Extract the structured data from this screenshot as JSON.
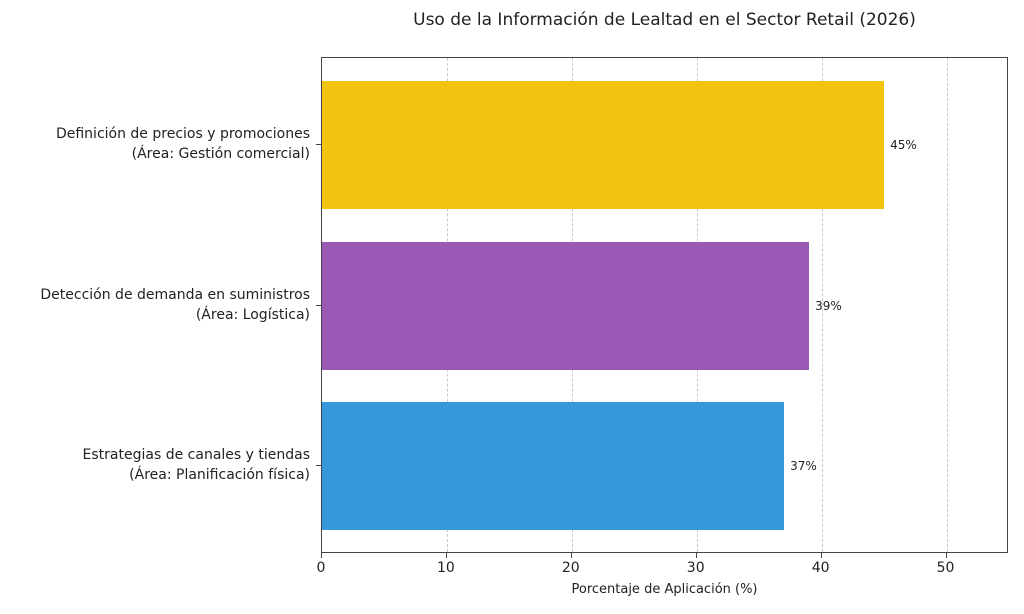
{
  "chart_data": {
    "type": "bar",
    "orientation": "horizontal",
    "title": "Uso de la Información de Lealtad en el Sector Retail (2026)",
    "xlabel": "Porcentaje de Aplicación (%)",
    "ylabel": "",
    "xlim": [
      0,
      55
    ],
    "xticks": [
      0,
      10,
      20,
      30,
      40,
      50
    ],
    "grid": "x-dashed",
    "categories": [
      "Definición de precios y promociones\n(Área: Gestión comercial)",
      "Detección de demanda en suministros\n(Área: Logística)",
      "Estrategias de canales y tiendas\n(Área: Planificación física)"
    ],
    "values": [
      45,
      39,
      37
    ],
    "value_labels": [
      "45%",
      "39%",
      "37%"
    ],
    "colors": [
      "#f1c40f",
      "#9b59b6",
      "#3498db"
    ]
  },
  "labels": {
    "cat0_line1": "Definición de precios y promociones",
    "cat0_line2": "(Área: Gestión comercial)",
    "cat1_line1": "Detección de demanda en suministros",
    "cat1_line2": "(Área: Logística)",
    "cat2_line1": "Estrategias de canales y tiendas",
    "cat2_line2": "(Área: Planificación física)"
  }
}
